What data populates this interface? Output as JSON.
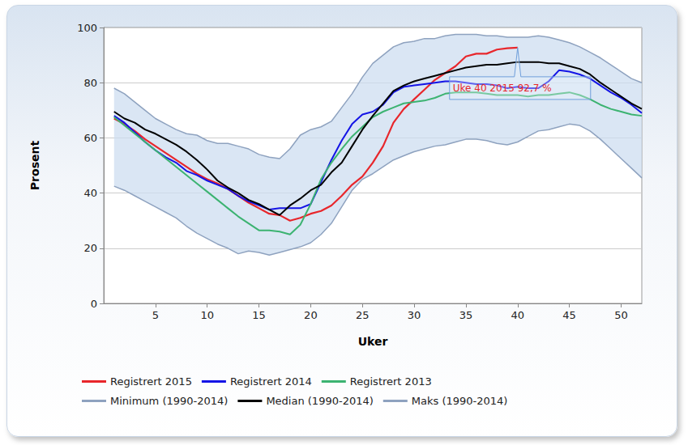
{
  "chart_data": {
    "type": "line",
    "x_label": "Uker",
    "y_label": "Prosent",
    "x": [
      1,
      2,
      3,
      4,
      5,
      6,
      7,
      8,
      9,
      10,
      11,
      12,
      13,
      14,
      15,
      16,
      17,
      18,
      19,
      20,
      21,
      22,
      23,
      24,
      25,
      26,
      27,
      28,
      29,
      30,
      31,
      32,
      33,
      34,
      35,
      36,
      37,
      38,
      39,
      40,
      41,
      42,
      43,
      44,
      45,
      46,
      47,
      48,
      49,
      50,
      51,
      52
    ],
    "xlim": [
      0,
      52
    ],
    "xticks": [
      5,
      10,
      15,
      20,
      25,
      30,
      35,
      40,
      45,
      50
    ],
    "ylim": [
      0,
      100
    ],
    "yticks": [
      0,
      20,
      40,
      60,
      80,
      100
    ],
    "grid": true,
    "legend": "bottom",
    "series": [
      {
        "name": "Registrert 2015",
        "color": "#e8262b",
        "values": [
          67,
          65,
          62.5,
          59.5,
          57,
          54.5,
          52,
          49.5,
          47,
          45,
          43.5,
          41.5,
          39,
          36.5,
          34.5,
          32.5,
          32,
          30,
          31,
          32.5,
          33.5,
          35.5,
          39,
          43,
          46,
          51,
          57,
          65.5,
          70.5,
          74,
          77.5,
          81,
          83.5,
          86,
          89.5,
          90.5,
          90.5,
          92,
          92.5,
          92.7,
          null,
          null,
          null,
          null,
          null,
          null,
          null,
          null,
          null,
          null,
          null,
          null
        ]
      },
      {
        "name": "Registrert 2014",
        "color": "#1414e6",
        "values": [
          68,
          65.5,
          62,
          58.5,
          55.5,
          53,
          51,
          48,
          46.5,
          44.5,
          43,
          41.5,
          39,
          37,
          35.5,
          34,
          34.5,
          34.5,
          34.5,
          36,
          44,
          52,
          59,
          65,
          68.5,
          69.5,
          72,
          76.5,
          78.5,
          79,
          79.5,
          80,
          80.5,
          80.5,
          80,
          79.5,
          79.5,
          79,
          78,
          78.5,
          78,
          78,
          80.5,
          84.5,
          84,
          83,
          81.5,
          79,
          76.5,
          74.5,
          72,
          69
        ]
      },
      {
        "name": "Registrert 2013",
        "color": "#3cb371",
        "values": [
          67.5,
          64.5,
          61.5,
          58.5,
          55.5,
          52.5,
          49.5,
          46.5,
          43.5,
          40.5,
          37.5,
          34.5,
          31.5,
          29,
          26.5,
          26.5,
          26,
          25,
          28.5,
          36,
          45,
          51,
          56,
          60.5,
          64,
          67.5,
          69.5,
          71,
          72.5,
          73,
          73.5,
          74.5,
          76,
          76.5,
          76.5,
          76.5,
          76,
          75.5,
          75.5,
          75.5,
          75,
          75.5,
          75.5,
          76,
          76.5,
          75.5,
          74,
          72,
          70.5,
          69.5,
          68.5,
          68
        ]
      },
      {
        "name": "Minimum (1990-2014)",
        "color": "#8ea2bf",
        "values": [
          42.5,
          41,
          39,
          37,
          35,
          33,
          31,
          28,
          25.5,
          23.5,
          21.5,
          20,
          18,
          19,
          18.5,
          17.5,
          18.5,
          19.5,
          20.5,
          22,
          25,
          29,
          35,
          41,
          45,
          47,
          49.5,
          52,
          53.5,
          55,
          56,
          57,
          57.5,
          58.5,
          59.5,
          59.5,
          59,
          58,
          57.5,
          58.5,
          60.5,
          62.5,
          63,
          64,
          65,
          64.5,
          62.5,
          59.5,
          56,
          52.5,
          49,
          45.5
        ]
      },
      {
        "name": "Median (1990-2014)",
        "color": "#000000",
        "values": [
          69.5,
          67,
          65.5,
          63,
          61.5,
          59.5,
          57.5,
          55,
          52,
          48.5,
          44.5,
          42,
          40,
          37.5,
          36,
          34,
          32,
          35.5,
          38,
          41,
          43,
          47.5,
          51,
          57,
          63,
          68,
          72.5,
          77,
          79,
          80.5,
          81.5,
          82.5,
          83.5,
          84.5,
          85.5,
          86,
          86.5,
          86.5,
          87,
          87.5,
          87.5,
          87.5,
          87,
          87,
          86,
          85,
          83,
          80,
          77.5,
          75,
          72.5,
          70.5
        ]
      },
      {
        "name": "Maks (1990-2014)",
        "color": "#8ea2bf",
        "values": [
          78,
          76,
          73,
          70,
          67,
          65,
          63,
          61.5,
          61,
          59,
          58,
          58,
          57,
          56,
          54,
          53,
          52.5,
          56,
          61,
          63,
          64,
          66,
          71,
          76,
          82,
          87,
          90,
          93,
          94.5,
          95,
          96,
          96,
          97,
          97.5,
          97.5,
          97.5,
          97,
          97,
          96.5,
          96.5,
          96.5,
          97,
          96.5,
          95.5,
          94.5,
          93,
          91,
          89,
          86.5,
          84,
          81.5,
          80
        ]
      }
    ],
    "annotations": [
      {
        "text": "Uke 40 2015 92,7 %",
        "x": 40,
        "y": 92.7
      }
    ]
  }
}
